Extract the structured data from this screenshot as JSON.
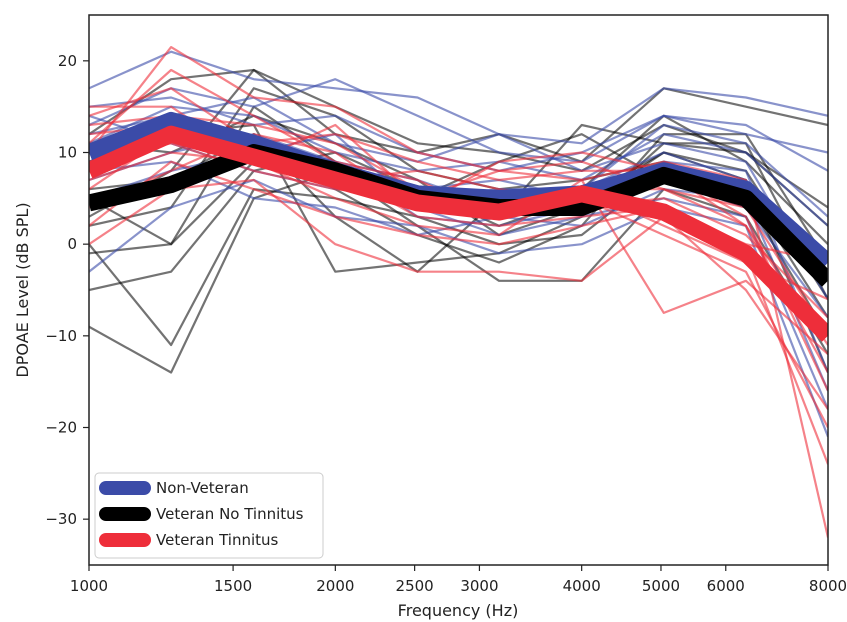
{
  "chart_data": {
    "type": "line",
    "xlabel": "Frequency (Hz)",
    "ylabel": "DPOAE Level (dB SPL)",
    "x_scale": "log",
    "xlim": [
      1000,
      8000
    ],
    "ylim": [
      -35,
      25
    ],
    "x_ticks": [
      {
        "value": 1000,
        "label": "1000"
      },
      {
        "value": 1500,
        "label": "1500"
      },
      {
        "value": 2000,
        "label": "2000"
      },
      {
        "value": 2500,
        "label": "2500"
      },
      {
        "value": 3000,
        "label": "3000"
      },
      {
        "value": 4000,
        "label": "4000"
      },
      {
        "value": 5000,
        "label": "5000"
      },
      {
        "value": 6000,
        "label": "6000"
      },
      {
        "value": 8000,
        "label": "8000"
      }
    ],
    "y_ticks": [
      {
        "value": 20,
        "label": "20"
      },
      {
        "value": 10,
        "label": "10"
      },
      {
        "value": 0,
        "label": "0"
      },
      {
        "value": -10,
        "label": "−10"
      },
      {
        "value": -20,
        "label": "−20"
      },
      {
        "value": -30,
        "label": "−30"
      }
    ],
    "x": [
      1000,
      1260,
      1590,
      2000,
      2520,
      3170,
      4000,
      5040,
      6350,
      8000
    ],
    "legend_position": "lower-left",
    "series": [
      {
        "name": "Non-Veteran",
        "color": "#3b4ba8",
        "values": [
          10,
          13.5,
          11,
          8,
          5.5,
          5,
          5.5,
          8,
          6,
          -2
        ]
      },
      {
        "name": "Veteran No Tinnitus",
        "color": "#000000",
        "values": [
          4.5,
          6.5,
          10,
          8,
          5,
          4,
          4,
          7.5,
          5,
          -4
        ]
      },
      {
        "name": "Veteran Tinnitus",
        "color": "#ee2e3a",
        "values": [
          8,
          12,
          9.5,
          7,
          4.5,
          3.5,
          5.5,
          3.5,
          -1,
          -10
        ]
      }
    ],
    "individual_traces": {
      "blue": [
        [
          17,
          21,
          18,
          17,
          16,
          12,
          11,
          17,
          16,
          14
        ],
        [
          13,
          17,
          15,
          18,
          14,
          10,
          9,
          14,
          12,
          10
        ],
        [
          11,
          15,
          14,
          10,
          8,
          9,
          7,
          12,
          10,
          2
        ],
        [
          9,
          12,
          9,
          7,
          5,
          6,
          6,
          10,
          7,
          -3
        ],
        [
          7,
          10,
          12,
          9,
          3,
          2,
          4,
          7,
          4,
          -8
        ],
        [
          14,
          11,
          8,
          6,
          6,
          7,
          5,
          9,
          8,
          -14
        ],
        [
          5,
          8,
          10,
          12,
          4,
          1,
          3,
          5,
          3,
          -18
        ],
        [
          12,
          14,
          16,
          11,
          9,
          12,
          8,
          11,
          9,
          -6
        ],
        [
          -3,
          4,
          7,
          3,
          2,
          -1,
          0,
          4,
          2,
          -21
        ],
        [
          10,
          13,
          11,
          9,
          7,
          4,
          6,
          13,
          11,
          3
        ],
        [
          8,
          9,
          5,
          4,
          1,
          3,
          2,
          6,
          5,
          -16
        ],
        [
          15,
          16,
          13,
          14,
          10,
          8,
          10,
          14,
          13,
          8
        ]
      ],
      "black": [
        [
          -9,
          -14,
          5,
          8,
          2,
          -4,
          -4,
          6,
          3,
          -12
        ],
        [
          -5,
          -3,
          8,
          10,
          6,
          2,
          5,
          10,
          8,
          -6
        ],
        [
          0,
          -11,
          6,
          5,
          3,
          0,
          1,
          8,
          5,
          -10
        ],
        [
          12,
          18,
          19,
          12,
          10,
          12,
          9,
          17,
          15,
          13
        ],
        [
          5,
          0,
          15,
          9,
          4,
          3,
          13,
          11,
          10,
          4
        ],
        [
          8,
          14,
          11,
          6,
          1,
          -2,
          2,
          12,
          12,
          -2
        ],
        [
          2,
          4,
          17,
          14,
          8,
          6,
          7,
          9,
          6,
          -8
        ],
        [
          6,
          7,
          12,
          3,
          -3,
          5,
          6,
          14,
          9,
          0
        ],
        [
          -1,
          0,
          9,
          7,
          5,
          9,
          12,
          7,
          4,
          -4
        ],
        [
          11,
          10,
          14,
          11,
          7,
          1,
          4,
          10,
          7,
          -14
        ],
        [
          3,
          8,
          19,
          15,
          11,
          10,
          8,
          13,
          10,
          2
        ],
        [
          9,
          12,
          13,
          -3,
          -2,
          -1,
          3,
          11,
          11,
          -6
        ]
      ],
      "red": [
        [
          10,
          21.5,
          16,
          15,
          10,
          8,
          7,
          9,
          7,
          -32
        ],
        [
          6,
          12,
          10,
          8,
          3,
          2,
          3,
          4,
          -1,
          -24
        ],
        [
          14,
          17,
          11,
          12,
          9,
          7,
          8,
          8,
          2,
          -14
        ],
        [
          0,
          6,
          7,
          0,
          -3,
          -3,
          -4,
          3,
          -5,
          -18
        ],
        [
          13,
          14,
          13,
          11,
          6,
          5,
          6,
          6,
          4,
          -10
        ],
        [
          7,
          10,
          9,
          5,
          2,
          1,
          7,
          -7.5,
          -4,
          -12
        ],
        [
          9,
          11,
          8,
          6,
          5,
          4,
          6,
          2,
          -2,
          -6
        ],
        [
          11,
          19,
          14,
          9,
          7,
          3,
          4,
          5,
          1,
          -8
        ],
        [
          4,
          8,
          12,
          10,
          4,
          9,
          10,
          8,
          3,
          -16
        ],
        [
          12,
          13,
          10,
          7,
          8,
          6,
          5,
          1,
          -3,
          -20
        ],
        [
          2,
          9,
          6,
          3,
          1,
          0,
          2,
          4,
          0,
          -2
        ],
        [
          15,
          15,
          9,
          13,
          5,
          8,
          9,
          6,
          2,
          -11
        ]
      ]
    }
  }
}
